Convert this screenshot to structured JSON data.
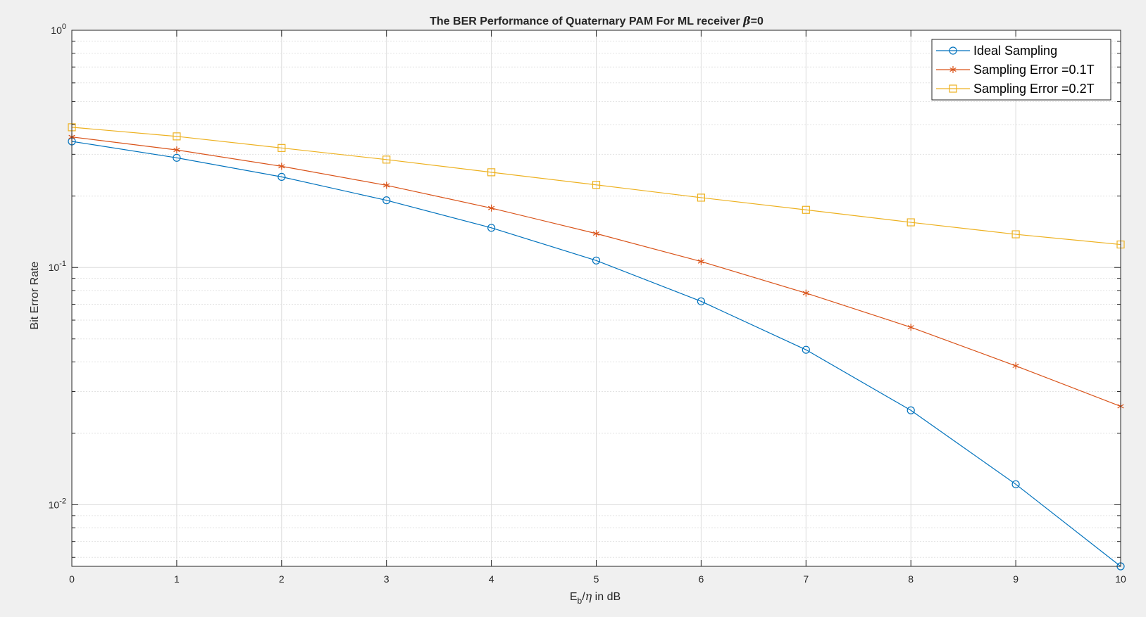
{
  "chart_data": {
    "type": "line",
    "title": "The BER Performance of Quaternary PAM For ML receiver β=0",
    "title_parts": {
      "prefix": "The BER Performance of Quaternary PAM For ML receiver ",
      "symbol": "β",
      "suffix": "=0"
    },
    "xlabel": "Eb/η in dB",
    "xlabel_parts": {
      "main": "E",
      "sub": "b",
      "slash": "/",
      "symbol": "η",
      "rest": " in dB"
    },
    "ylabel": "Bit Error Rate",
    "x": [
      0,
      1,
      2,
      3,
      4,
      5,
      6,
      7,
      8,
      9,
      10
    ],
    "xlim": [
      0,
      10
    ],
    "ylim": [
      0.0055,
      1
    ],
    "yscale": "log",
    "xticks": [
      "0",
      "1",
      "2",
      "3",
      "4",
      "5",
      "6",
      "7",
      "8",
      "9",
      "10"
    ],
    "yticks": [
      {
        "value": 1,
        "base": "10",
        "exp": "0"
      },
      {
        "value": 0.1,
        "base": "10",
        "exp": "-1"
      },
      {
        "value": 0.01,
        "base": "10",
        "exp": "-2"
      }
    ],
    "grid": true,
    "minor_grid": true,
    "legend_position": "top-right",
    "series": [
      {
        "name": "Ideal Sampling",
        "color": "#0072bd",
        "marker": "circle",
        "values": [
          0.34,
          0.29,
          0.241,
          0.192,
          0.147,
          0.107,
          0.072,
          0.045,
          0.025,
          0.0122,
          0.0055
        ]
      },
      {
        "name": "Sampling Error =0.1T",
        "color": "#d95319",
        "marker": "asterisk",
        "values": [
          0.355,
          0.313,
          0.267,
          0.222,
          0.178,
          0.139,
          0.106,
          0.078,
          0.056,
          0.0385,
          0.026
        ]
      },
      {
        "name": "Sampling Error =0.2T",
        "color": "#edb120",
        "marker": "square",
        "values": [
          0.39,
          0.357,
          0.319,
          0.285,
          0.252,
          0.223,
          0.197,
          0.175,
          0.155,
          0.138,
          0.125
        ]
      }
    ]
  }
}
